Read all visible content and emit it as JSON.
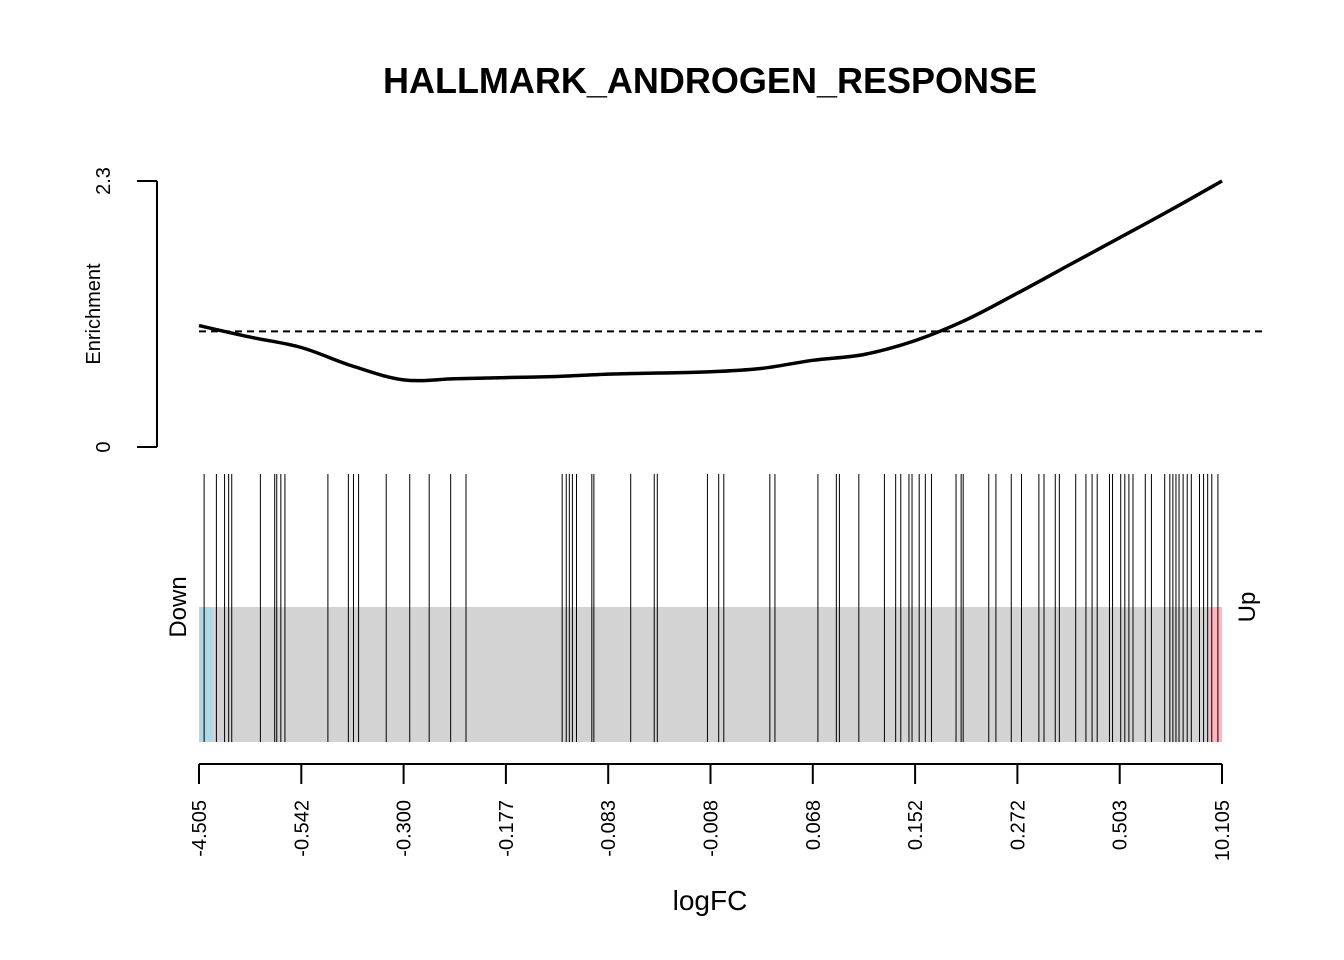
{
  "chart_data": {
    "type": "barcode",
    "title": "HALLMARK_ANDROGEN_RESPONSE",
    "enrichment": {
      "ylabel": "Enrichment",
      "ylim": [
        0,
        2.3
      ],
      "ytick_labels": [
        "0",
        "2.3"
      ],
      "reference_line": 1.0,
      "curve": {
        "x": [
          0.0,
          0.05,
          0.1,
          0.15,
          0.2,
          0.25,
          0.3,
          0.35,
          0.4,
          0.45,
          0.5,
          0.55,
          0.6,
          0.65,
          0.7,
          0.75,
          0.8,
          0.85,
          0.9,
          0.95,
          1.0
        ],
        "y": [
          1.05,
          0.95,
          0.86,
          0.7,
          0.58,
          0.59,
          0.6,
          0.61,
          0.63,
          0.64,
          0.65,
          0.68,
          0.75,
          0.8,
          0.92,
          1.1,
          1.33,
          1.57,
          1.81,
          2.05,
          2.3
        ]
      }
    },
    "barcode": {
      "labels": {
        "down": "Down",
        "up": "Up"
      },
      "colors": {
        "down": "#ADD8E6",
        "middle": "#D3D3D3",
        "up": "#FFB6C1"
      },
      "down_fraction": 0.013,
      "up_fraction": 0.013,
      "positions": [
        0.005,
        0.017,
        0.025,
        0.029,
        0.032,
        0.06,
        0.074,
        0.076,
        0.08,
        0.084,
        0.126,
        0.146,
        0.151,
        0.156,
        0.183,
        0.206,
        0.225,
        0.246,
        0.261,
        0.355,
        0.359,
        0.362,
        0.365,
        0.369,
        0.384,
        0.386,
        0.422,
        0.445,
        0.448,
        0.497,
        0.508,
        0.513,
        0.558,
        0.563,
        0.605,
        0.623,
        0.626,
        0.645,
        0.67,
        0.681,
        0.686,
        0.694,
        0.697,
        0.704,
        0.71,
        0.716,
        0.74,
        0.745,
        0.747,
        0.772,
        0.779,
        0.794,
        0.804,
        0.821,
        0.826,
        0.837,
        0.841,
        0.857,
        0.867,
        0.873,
        0.878,
        0.89,
        0.893,
        0.901,
        0.905,
        0.909,
        0.913,
        0.925,
        0.931,
        0.944,
        0.949,
        0.952,
        0.955,
        0.958,
        0.962,
        0.966,
        0.97,
        0.978,
        0.982,
        0.986,
        0.99,
        0.996
      ]
    },
    "xaxis": {
      "label": "logFC",
      "tick_labels": [
        "-4.505",
        "-0.542",
        "-0.300",
        "-0.177",
        "-0.083",
        "-0.008",
        "0.068",
        "0.152",
        "0.272",
        "0.503",
        "10.105"
      ]
    },
    "colors": {
      "curve": "#000000",
      "reference": "#000000",
      "bars": "#000000"
    }
  }
}
